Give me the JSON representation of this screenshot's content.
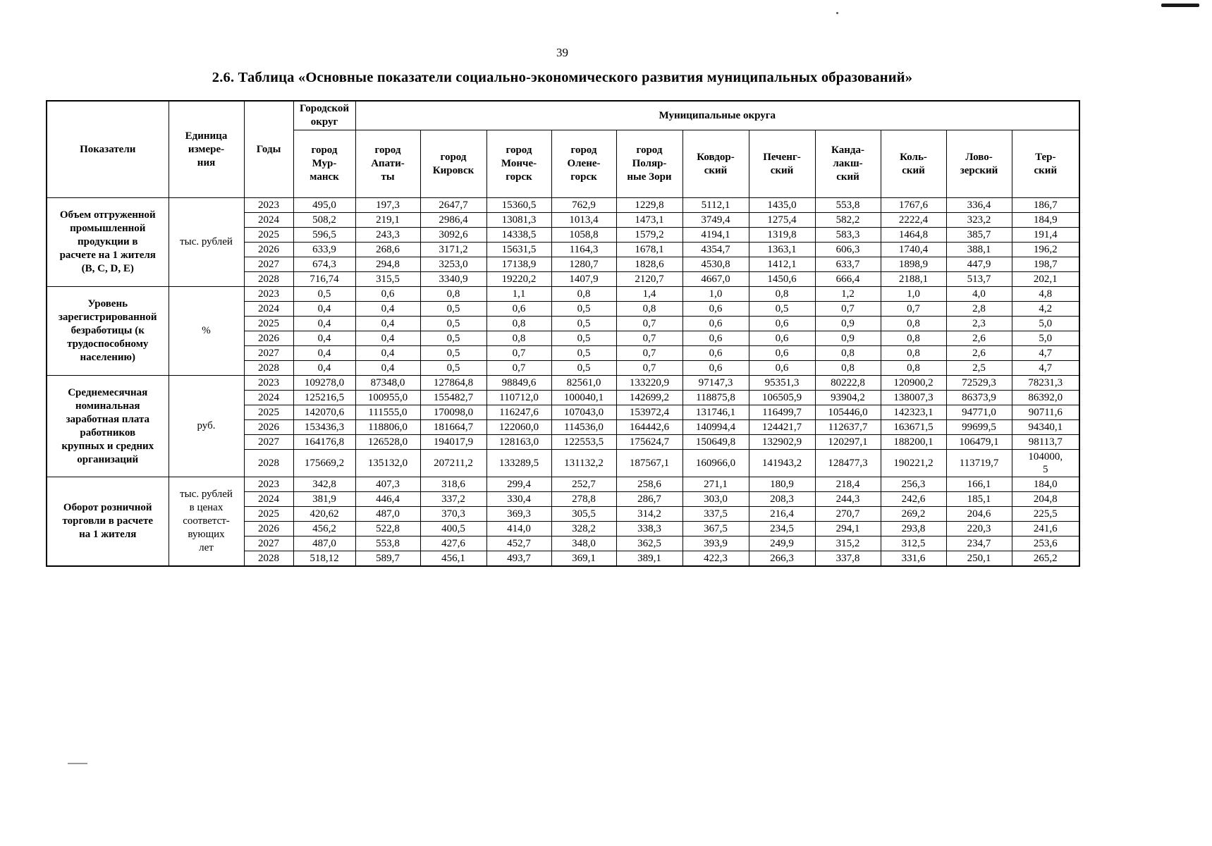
{
  "page": {
    "number": "39",
    "title": "2.6. Таблица «Основные показатели социально-экономического развития муниципальных образований»"
  },
  "table": {
    "corner_headers": {
      "indicators": "Показатели",
      "unit": "Единица\nизмере-\nния",
      "years": "Годы"
    },
    "top_headers": {
      "city_district": "Городской\nокруг",
      "municipal_districts": "Муниципальные округа"
    },
    "columns": [
      "город\nМур-\nманск",
      "город\nАпати-\nты",
      "город\nКировск",
      "город\nМонче-\nгорск",
      "город\nОлене-\nгорск",
      "город\nПоляр-\nные Зори",
      "Ковдор-\nский",
      "Печенг-\nский",
      "Канда-\nлакш-\nский",
      "Коль-\nский",
      "Лово-\nзерский",
      "Тер-\nский"
    ],
    "groups": [
      {
        "indicator": "Объем отгруженной\nпромышленной\nпродукции в\nрасчете на 1 жителя\n(B, C, D, E)",
        "unit": "тыс. рублей",
        "rows": [
          {
            "year": "2023",
            "values": [
              "495,0",
              "197,3",
              "2647,7",
              "15360,5",
              "762,9",
              "1229,8",
              "5112,1",
              "1435,0",
              "553,8",
              "1767,6",
              "336,4",
              "186,7"
            ]
          },
          {
            "year": "2024",
            "values": [
              "508,2",
              "219,1",
              "2986,4",
              "13081,3",
              "1013,4",
              "1473,1",
              "3749,4",
              "1275,4",
              "582,2",
              "2222,4",
              "323,2",
              "184,9"
            ]
          },
          {
            "year": "2025",
            "values": [
              "596,5",
              "243,3",
              "3092,6",
              "14338,5",
              "1058,8",
              "1579,2",
              "4194,1",
              "1319,8",
              "583,3",
              "1464,8",
              "385,7",
              "191,4"
            ]
          },
          {
            "year": "2026",
            "values": [
              "633,9",
              "268,6",
              "3171,2",
              "15631,5",
              "1164,3",
              "1678,1",
              "4354,7",
              "1363,1",
              "606,3",
              "1740,4",
              "388,1",
              "196,2"
            ]
          },
          {
            "year": "2027",
            "values": [
              "674,3",
              "294,8",
              "3253,0",
              "17138,9",
              "1280,7",
              "1828,6",
              "4530,8",
              "1412,1",
              "633,7",
              "1898,9",
              "447,9",
              "198,7"
            ]
          },
          {
            "year": "2028",
            "values": [
              "716,74",
              "315,5",
              "3340,9",
              "19220,2",
              "1407,9",
              "2120,7",
              "4667,0",
              "1450,6",
              "666,4",
              "2188,1",
              "513,7",
              "202,1"
            ]
          }
        ]
      },
      {
        "indicator": "Уровень\nзарегистрированной\nбезработицы (к\nтрудоспособному\nнаселению)",
        "unit": "%",
        "rows": [
          {
            "year": "2023",
            "values": [
              "0,5",
              "0,6",
              "0,8",
              "1,1",
              "0,8",
              "1,4",
              "1,0",
              "0,8",
              "1,2",
              "1,0",
              "4,0",
              "4,8"
            ]
          },
          {
            "year": "2024",
            "values": [
              "0,4",
              "0,4",
              "0,5",
              "0,6",
              "0,5",
              "0,8",
              "0,6",
              "0,5",
              "0,7",
              "0,7",
              "2,8",
              "4,2"
            ]
          },
          {
            "year": "2025",
            "values": [
              "0,4",
              "0,4",
              "0,5",
              "0,8",
              "0,5",
              "0,7",
              "0,6",
              "0,6",
              "0,9",
              "0,8",
              "2,3",
              "5,0"
            ]
          },
          {
            "year": "2026",
            "values": [
              "0,4",
              "0,4",
              "0,5",
              "0,8",
              "0,5",
              "0,7",
              "0,6",
              "0,6",
              "0,9",
              "0,8",
              "2,6",
              "5,0"
            ]
          },
          {
            "year": "2027",
            "values": [
              "0,4",
              "0,4",
              "0,5",
              "0,7",
              "0,5",
              "0,7",
              "0,6",
              "0,6",
              "0,8",
              "0,8",
              "2,6",
              "4,7"
            ]
          },
          {
            "year": "2028",
            "values": [
              "0,4",
              "0,4",
              "0,5",
              "0,7",
              "0,5",
              "0,7",
              "0,6",
              "0,6",
              "0,8",
              "0,8",
              "2,5",
              "4,7"
            ]
          }
        ]
      },
      {
        "indicator": "Среднемесячная\nноминальная\nзаработная плата\nработников\nкрупных и средних\nорганизаций",
        "unit": "руб.",
        "rows": [
          {
            "year": "2023",
            "values": [
              "109278,0",
              "87348,0",
              "127864,8",
              "98849,6",
              "82561,0",
              "133220,9",
              "97147,3",
              "95351,3",
              "80222,8",
              "120900,2",
              "72529,3",
              "78231,3"
            ]
          },
          {
            "year": "2024",
            "values": [
              "125216,5",
              "100955,0",
              "155482,7",
              "110712,0",
              "100040,1",
              "142699,2",
              "118875,8",
              "106505,9",
              "93904,2",
              "138007,3",
              "86373,9",
              "86392,0"
            ]
          },
          {
            "year": "2025",
            "values": [
              "142070,6",
              "111555,0",
              "170098,0",
              "116247,6",
              "107043,0",
              "153972,4",
              "131746,1",
              "116499,7",
              "105446,0",
              "142323,1",
              "94771,0",
              "90711,6"
            ]
          },
          {
            "year": "2026",
            "values": [
              "153436,3",
              "118806,0",
              "181664,7",
              "122060,0",
              "114536,0",
              "164442,6",
              "140994,4",
              "124421,7",
              "112637,7",
              "163671,5",
              "99699,5",
              "94340,1"
            ]
          },
          {
            "year": "2027",
            "values": [
              "164176,8",
              "126528,0",
              "194017,9",
              "128163,0",
              "122553,5",
              "175624,7",
              "150649,8",
              "132902,9",
              "120297,1",
              "188200,1",
              "106479,1",
              "98113,7"
            ]
          },
          {
            "year": "2028",
            "values": [
              "175669,2",
              "135132,0",
              "207211,2",
              "133289,5",
              "131132,2",
              "187567,1",
              "160966,0",
              "141943,2",
              "128477,3",
              "190221,2",
              "113719,7",
              "104000,\n5"
            ]
          }
        ]
      },
      {
        "indicator": "Оборот розничной\nторговли в расчете\nна 1 жителя",
        "unit": "тыс. рублей\nв ценах\nсоответст-\nвующих\nлет",
        "rows": [
          {
            "year": "2023",
            "values": [
              "342,8",
              "407,3",
              "318,6",
              "299,4",
              "252,7",
              "258,6",
              "271,1",
              "180,9",
              "218,4",
              "256,3",
              "166,1",
              "184,0"
            ]
          },
          {
            "year": "2024",
            "values": [
              "381,9",
              "446,4",
              "337,2",
              "330,4",
              "278,8",
              "286,7",
              "303,0",
              "208,3",
              "244,3",
              "242,6",
              "185,1",
              "204,8"
            ]
          },
          {
            "year": "2025",
            "values": [
              "420,62",
              "487,0",
              "370,3",
              "369,3",
              "305,5",
              "314,2",
              "337,5",
              "216,4",
              "270,7",
              "269,2",
              "204,6",
              "225,5"
            ]
          },
          {
            "year": "2026",
            "values": [
              "456,2",
              "522,8",
              "400,5",
              "414,0",
              "328,2",
              "338,3",
              "367,5",
              "234,5",
              "294,1",
              "293,8",
              "220,3",
              "241,6"
            ]
          },
          {
            "year": "2027",
            "values": [
              "487,0",
              "553,8",
              "427,6",
              "452,7",
              "348,0",
              "362,5",
              "393,9",
              "249,9",
              "315,2",
              "312,5",
              "234,7",
              "253,6"
            ]
          },
          {
            "year": "2028",
            "values": [
              "518,12",
              "589,7",
              "456,1",
              "493,7",
              "369,1",
              "389,1",
              "422,3",
              "266,3",
              "337,8",
              "331,6",
              "250,1",
              "265,2"
            ]
          }
        ]
      }
    ]
  }
}
